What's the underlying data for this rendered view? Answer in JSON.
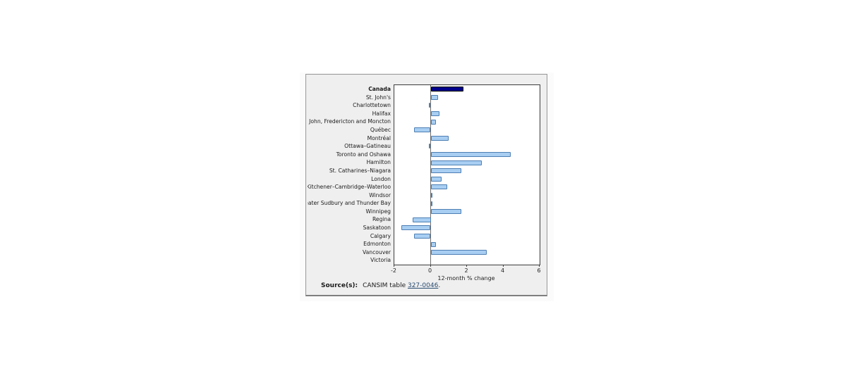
{
  "chart_data": {
    "type": "bar",
    "orientation": "horizontal",
    "categories": [
      "Canada",
      "St. John's",
      "Charlottetown",
      "Halifax",
      "Saint John, Fredericton and Moncton",
      "Québec",
      "Montréal",
      "Ottawa–Gatineau",
      "Toronto and Oshawa",
      "Hamilton",
      "St. Catharines–Niagara",
      "London",
      "Kitchener–Cambridge–Waterloo",
      "Windsor",
      "Greater Sudbury and Thunder Bay",
      "Winnipeg",
      "Regina",
      "Saskatoon",
      "Calgary",
      "Edmonton",
      "Vancouver",
      "Victoria"
    ],
    "values": [
      1.8,
      0.4,
      -0.1,
      0.5,
      0.3,
      -0.9,
      1.0,
      -0.1,
      4.4,
      2.8,
      1.7,
      0.6,
      0.9,
      0.1,
      0.1,
      1.7,
      -1.0,
      -1.6,
      -0.9,
      0.3,
      3.1,
      0.0
    ],
    "highlight_category": "Canada",
    "title": "",
    "xlabel": "12-month % change",
    "ylabel": "",
    "xlim": [
      -2,
      6
    ],
    "xticks": [
      "-2",
      "0",
      "2",
      "4",
      "6"
    ],
    "grid": false,
    "legend": false,
    "bar_color": "#a8cef2",
    "bar_border_color": "#4d7eb3",
    "highlight_color": "#00008b",
    "highlight_border_color": "#000000",
    "panel_background": "#efefef",
    "plot_background": "#ffffff"
  },
  "source": {
    "label": "Source(s):",
    "text": "CANSIM table",
    "link_text": "327-0046",
    "suffix": "."
  }
}
